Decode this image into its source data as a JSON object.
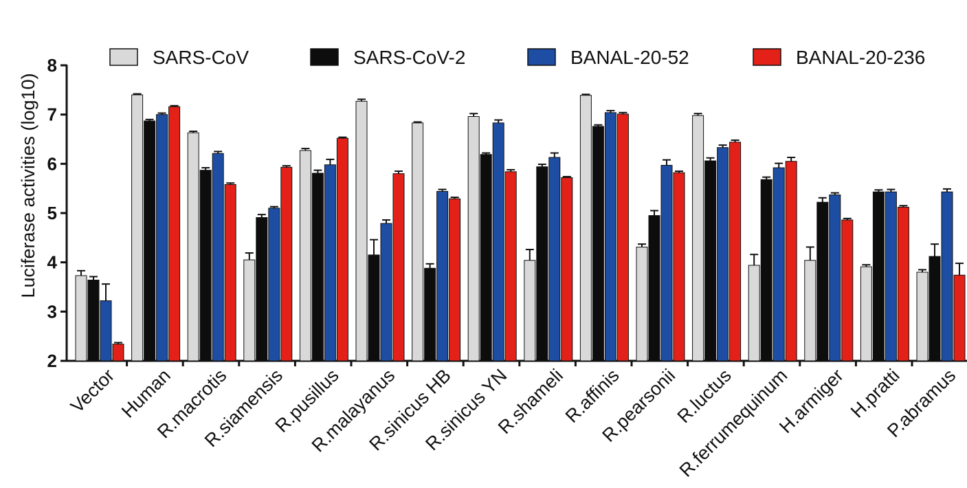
{
  "chart_data": {
    "type": "bar",
    "ylabel": "Luciferase activities (log10)",
    "ylim": [
      2,
      8
    ],
    "yticks": [
      "2",
      "3",
      "4",
      "5",
      "6",
      "7",
      "8"
    ],
    "categories": [
      "Vector",
      "Human",
      "R.macrotis",
      "R.siamensis",
      "R.pusillus",
      "R.malayanus",
      "R.sinicus HB",
      "R.sinicus YN",
      "R.shameli",
      "R.affinis",
      "R.pearsonii",
      "R.luctus",
      "R.ferrumequinum",
      "H.armiger",
      "H.pratti",
      "P.abramus"
    ],
    "legend_position": "top",
    "series": [
      {
        "name": "SARS-CoV",
        "color": "#d9d9d9",
        "values": [
          3.73,
          7.4,
          6.63,
          4.05,
          6.27,
          7.27,
          6.83,
          6.96,
          4.04,
          7.39,
          4.31,
          6.98,
          3.94,
          4.04,
          3.91,
          3.8
        ],
        "errors": [
          0.1,
          0.02,
          0.03,
          0.14,
          0.04,
          0.04,
          0.02,
          0.06,
          0.22,
          0.02,
          0.06,
          0.04,
          0.22,
          0.27,
          0.04,
          0.05
        ]
      },
      {
        "name": "SARS-CoV-2",
        "color": "#0d0d0d",
        "values": [
          3.64,
          6.87,
          5.87,
          4.91,
          5.81,
          4.15,
          3.88,
          6.19,
          5.94,
          6.76,
          4.95,
          6.06,
          5.68,
          5.22,
          5.43,
          4.12
        ],
        "errors": [
          0.07,
          0.03,
          0.05,
          0.06,
          0.06,
          0.31,
          0.09,
          0.03,
          0.05,
          0.03,
          0.1,
          0.06,
          0.05,
          0.09,
          0.04,
          0.25
        ]
      },
      {
        "name": "BANAL-20-52",
        "color": "#1d4ea3",
        "values": [
          3.22,
          7.0,
          6.21,
          5.1,
          5.98,
          4.79,
          5.44,
          6.83,
          6.13,
          7.04,
          5.97,
          6.33,
          5.92,
          5.37,
          5.43,
          5.43
        ],
        "errors": [
          0.34,
          0.03,
          0.04,
          0.03,
          0.11,
          0.07,
          0.04,
          0.06,
          0.09,
          0.04,
          0.11,
          0.05,
          0.09,
          0.04,
          0.05,
          0.06
        ]
      },
      {
        "name": "BANAL-20-236",
        "color": "#e32118",
        "values": [
          2.34,
          7.16,
          5.58,
          5.93,
          6.52,
          5.8,
          5.29,
          5.84,
          5.72,
          7.01,
          5.82,
          6.44,
          6.05,
          4.86,
          5.12,
          3.74
        ],
        "errors": [
          0.03,
          0.02,
          0.03,
          0.03,
          0.02,
          0.05,
          0.03,
          0.04,
          0.02,
          0.03,
          0.03,
          0.04,
          0.08,
          0.03,
          0.03,
          0.24
        ]
      }
    ]
  }
}
